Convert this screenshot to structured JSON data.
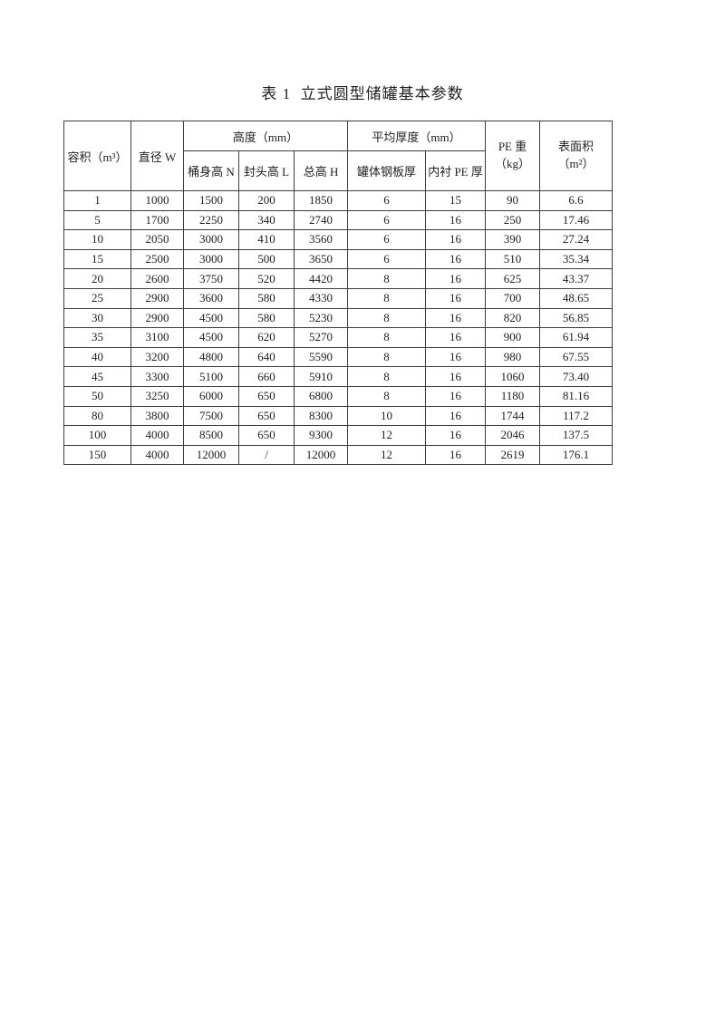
{
  "page": {
    "title": "表 1  立式圆型储罐基本参数"
  },
  "table": {
    "headers": {
      "volume": "容积（m³）",
      "diameter": "直径 W",
      "height_group": "高度（mm）",
      "body_height": "桶身高 N",
      "head_height": "封头高 L",
      "total_height": "总高 H",
      "thickness_group": "平均厚度（mm）",
      "steel_plate_thickness": "罐体钢板厚",
      "pe_lining_thickness": "内衬 PE 厚",
      "pe_weight_line1": "PE 重",
      "pe_weight_line2": "（kg）",
      "surface_area_line1": "表面积",
      "surface_area_line2": "（m²）"
    },
    "columns": [
      "容积（m³）",
      "直径 W",
      "桶身高 N",
      "封头高 L",
      "总高 H",
      "罐体钢板厚",
      "内衬 PE 厚",
      "PE 重（kg）",
      "表面积（m²）"
    ],
    "rows": [
      [
        "1",
        "1000",
        "1500",
        "200",
        "1850",
        "6",
        "15",
        "90",
        "6.6"
      ],
      [
        "5",
        "1700",
        "2250",
        "340",
        "2740",
        "6",
        "16",
        "250",
        "17.46"
      ],
      [
        "10",
        "2050",
        "3000",
        "410",
        "3560",
        "6",
        "16",
        "390",
        "27.24"
      ],
      [
        "15",
        "2500",
        "3000",
        "500",
        "3650",
        "6",
        "16",
        "510",
        "35.34"
      ],
      [
        "20",
        "2600",
        "3750",
        "520",
        "4420",
        "8",
        "16",
        "625",
        "43.37"
      ],
      [
        "25",
        "2900",
        "3600",
        "580",
        "4330",
        "8",
        "16",
        "700",
        "48.65"
      ],
      [
        "30",
        "2900",
        "4500",
        "580",
        "5230",
        "8",
        "16",
        "820",
        "56.85"
      ],
      [
        "35",
        "3100",
        "4500",
        "620",
        "5270",
        "8",
        "16",
        "900",
        "61.94"
      ],
      [
        "40",
        "3200",
        "4800",
        "640",
        "5590",
        "8",
        "16",
        "980",
        "67.55"
      ],
      [
        "45",
        "3300",
        "5100",
        "660",
        "5910",
        "8",
        "16",
        "1060",
        "73.40"
      ],
      [
        "50",
        "3250",
        "6000",
        "650",
        "6800",
        "8",
        "16",
        "1180",
        "81.16"
      ],
      [
        "80",
        "3800",
        "7500",
        "650",
        "8300",
        "10",
        "16",
        "1744",
        "117.2"
      ],
      [
        "100",
        "4000",
        "8500",
        "650",
        "9300",
        "12",
        "16",
        "2046",
        "137.5"
      ],
      [
        "150",
        "4000",
        "12000",
        "/",
        "12000",
        "12",
        "16",
        "2619",
        "176.1"
      ]
    ]
  }
}
